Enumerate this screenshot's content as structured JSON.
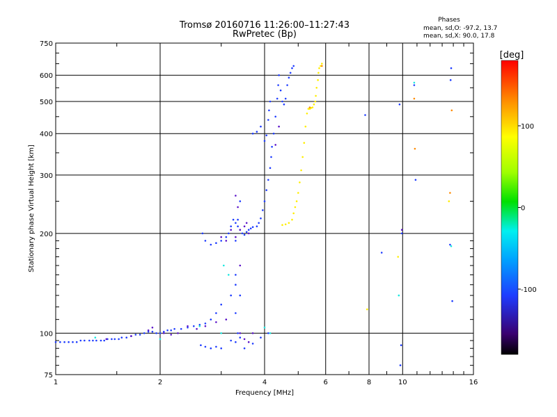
{
  "chart_data": {
    "type": "scatter",
    "title": "Tromsø 20160716 11:26:00–11:27:43",
    "subtitle": "RwPretec (Bp)",
    "xlabel": "Frequency [MHz]",
    "ylabel": "Stationary phase Virtual Height [km]",
    "x_scale": "log",
    "y_scale": "log",
    "xlim": [
      1,
      16
    ],
    "ylim": [
      75,
      750
    ],
    "x_ticks": [
      1,
      2,
      4,
      6,
      8,
      10,
      16
    ],
    "x_tick_labels": [
      "1",
      "2",
      "4",
      "6",
      "8",
      "10",
      "16"
    ],
    "y_ticks": [
      75,
      100,
      200,
      300,
      400,
      500,
      600,
      750
    ],
    "y_tick_labels": [
      "75",
      "100",
      "200",
      "300",
      "400",
      "500",
      "600",
      "750"
    ],
    "phase_box": {
      "title": "Phases",
      "line1": "mean, sd,O: -97.2, 13.7",
      "line2": "mean, sd,X:  90.0, 17.8"
    },
    "colorbar": {
      "label": "[deg]",
      "range": [
        -180,
        180
      ],
      "ticks": [
        -100,
        0,
        100
      ],
      "tick_labels": [
        "-100",
        "0",
        "100"
      ]
    },
    "series": [
      {
        "phase_deg": -97,
        "color": "#1e3cff",
        "points": [
          [
            1.0,
            94
          ],
          [
            1.03,
            94
          ],
          [
            1.06,
            94
          ],
          [
            1.09,
            94
          ],
          [
            1.12,
            94
          ],
          [
            1.15,
            94
          ],
          [
            1.18,
            95
          ],
          [
            1.21,
            95
          ],
          [
            1.25,
            95
          ],
          [
            1.28,
            95
          ],
          [
            1.31,
            95
          ],
          [
            1.35,
            95
          ],
          [
            1.38,
            95
          ],
          [
            1.41,
            96
          ],
          [
            1.45,
            96
          ],
          [
            1.48,
            96
          ],
          [
            1.52,
            96
          ],
          [
            1.55,
            97
          ],
          [
            1.6,
            97
          ],
          [
            1.65,
            98
          ],
          [
            1.7,
            99
          ],
          [
            1.75,
            99
          ],
          [
            1.8,
            100
          ],
          [
            1.85,
            101
          ],
          [
            1.9,
            101
          ],
          [
            1.95,
            100
          ],
          [
            2.0,
            100
          ],
          [
            2.05,
            101
          ],
          [
            2.1,
            102
          ],
          [
            2.15,
            102
          ],
          [
            2.2,
            103
          ],
          [
            2.3,
            103
          ],
          [
            2.4,
            104
          ],
          [
            2.5,
            105
          ],
          [
            2.6,
            106
          ],
          [
            2.7,
            107
          ],
          [
            2.8,
            110
          ],
          [
            2.9,
            115
          ],
          [
            3.0,
            122
          ],
          [
            2.62,
            92
          ],
          [
            2.7,
            91
          ],
          [
            2.8,
            90
          ],
          [
            2.9,
            91
          ],
          [
            3.0,
            90
          ],
          [
            3.2,
            95
          ],
          [
            3.3,
            94
          ],
          [
            3.5,
            90
          ],
          [
            3.7,
            93
          ],
          [
            3.9,
            97
          ],
          [
            4.1,
            100
          ],
          [
            2.65,
            200
          ],
          [
            2.7,
            190
          ],
          [
            2.8,
            185
          ],
          [
            2.9,
            187
          ],
          [
            3.0,
            190
          ],
          [
            3.1,
            195
          ],
          [
            3.15,
            200
          ],
          [
            3.2,
            210
          ],
          [
            3.25,
            220
          ],
          [
            3.3,
            215
          ],
          [
            3.35,
            210
          ],
          [
            3.4,
            205
          ],
          [
            3.45,
            200
          ],
          [
            3.5,
            198
          ],
          [
            3.55,
            202
          ],
          [
            3.6,
            205
          ],
          [
            3.65,
            207
          ],
          [
            3.7,
            209
          ],
          [
            3.8,
            210
          ],
          [
            3.85,
            215
          ],
          [
            3.9,
            222
          ],
          [
            3.95,
            235
          ],
          [
            4.0,
            250
          ],
          [
            4.05,
            270
          ],
          [
            4.1,
            290
          ],
          [
            4.15,
            315
          ],
          [
            4.18,
            340
          ],
          [
            4.2,
            365
          ],
          [
            4.25,
            400
          ],
          [
            4.3,
            450
          ],
          [
            4.35,
            510
          ],
          [
            4.38,
            560
          ],
          [
            4.4,
            600
          ],
          [
            4.45,
            540
          ],
          [
            4.5,
            500
          ],
          [
            4.55,
            490
          ],
          [
            4.6,
            510
          ],
          [
            4.65,
            560
          ],
          [
            4.7,
            590
          ],
          [
            4.75,
            610
          ],
          [
            4.8,
            630
          ],
          [
            4.85,
            640
          ],
          [
            4.0,
            380
          ],
          [
            4.05,
            395
          ],
          [
            4.1,
            440
          ],
          [
            4.12,
            470
          ],
          [
            4.15,
            500
          ],
          [
            3.7,
            400
          ],
          [
            3.8,
            405
          ],
          [
            3.9,
            420
          ],
          [
            3.4,
            250
          ],
          [
            3.35,
            220
          ],
          [
            3.3,
            190
          ],
          [
            3.3,
            150
          ],
          [
            3.3,
            140
          ],
          [
            3.4,
            130
          ],
          [
            3.2,
            130
          ],
          [
            3.3,
            115
          ],
          [
            3.35,
            100
          ],
          [
            3.4,
            97
          ],
          [
            7.8,
            455
          ],
          [
            8.7,
            175
          ],
          [
            9.8,
            490
          ],
          [
            9.85,
            80
          ],
          [
            9.9,
            92
          ],
          [
            9.95,
            200
          ],
          [
            10.8,
            560
          ],
          [
            10.9,
            290
          ],
          [
            13.8,
            630
          ],
          [
            13.75,
            580
          ],
          [
            13.7,
            185
          ],
          [
            13.9,
            125
          ]
        ]
      },
      {
        "phase_deg": -135,
        "color": "#5a12c8",
        "points": [
          [
            1.4,
            96
          ],
          [
            1.65,
            98
          ],
          [
            1.85,
            102
          ],
          [
            1.9,
            104
          ],
          [
            2.05,
            100
          ],
          [
            2.15,
            99
          ],
          [
            2.25,
            100
          ],
          [
            2.4,
            105
          ],
          [
            2.55,
            103
          ],
          [
            2.7,
            105
          ],
          [
            2.9,
            108
          ],
          [
            3.1,
            110
          ],
          [
            3.0,
            195
          ],
          [
            3.1,
            190
          ],
          [
            3.2,
            205
          ],
          [
            3.3,
            195
          ],
          [
            3.4,
            205
          ],
          [
            3.5,
            210
          ],
          [
            3.55,
            215
          ],
          [
            3.6,
            200
          ],
          [
            3.35,
            240
          ],
          [
            3.3,
            260
          ],
          [
            3.4,
            100
          ],
          [
            3.5,
            96
          ],
          [
            3.6,
            94
          ],
          [
            3.7,
            100
          ],
          [
            3.4,
            160
          ],
          [
            4.3,
            370
          ],
          [
            4.4,
            420
          ],
          [
            9.95,
            205
          ]
        ]
      },
      {
        "phase_deg": 100,
        "color": "#ffee00",
        "points": [
          [
            4.5,
            212
          ],
          [
            4.6,
            213
          ],
          [
            4.7,
            215
          ],
          [
            4.8,
            220
          ],
          [
            4.85,
            230
          ],
          [
            4.9,
            240
          ],
          [
            4.95,
            250
          ],
          [
            5.0,
            265
          ],
          [
            5.05,
            285
          ],
          [
            5.1,
            310
          ],
          [
            5.15,
            340
          ],
          [
            5.2,
            375
          ],
          [
            5.25,
            420
          ],
          [
            5.3,
            460
          ],
          [
            5.35,
            475
          ],
          [
            5.4,
            475
          ],
          [
            5.45,
            478
          ],
          [
            5.5,
            480
          ],
          [
            5.55,
            490
          ],
          [
            5.6,
            500
          ],
          [
            5.62,
            520
          ],
          [
            5.65,
            550
          ],
          [
            5.7,
            580
          ],
          [
            5.72,
            610
          ],
          [
            5.75,
            630
          ],
          [
            5.8,
            640
          ],
          [
            5.85,
            650
          ],
          [
            7.9,
            118
          ],
          [
            9.7,
            170
          ],
          [
            13.6,
            250
          ]
        ]
      },
      {
        "phase_deg": 150,
        "color": "#ff8a00",
        "points": [
          [
            10.8,
            510
          ],
          [
            10.85,
            360
          ],
          [
            13.85,
            470
          ],
          [
            13.7,
            265
          ],
          [
            5.85,
            640
          ],
          [
            5.4,
            480
          ]
        ]
      },
      {
        "phase_deg": 0,
        "color": "#18e8e0",
        "points": [
          [
            1.3,
            97
          ],
          [
            2.0,
            96
          ],
          [
            2.6,
            105
          ],
          [
            3.0,
            100
          ],
          [
            3.05,
            160
          ],
          [
            3.15,
            150
          ],
          [
            4.0,
            104
          ],
          [
            4.15,
            100
          ],
          [
            9.75,
            130
          ],
          [
            10.8,
            570
          ],
          [
            13.8,
            183
          ]
        ]
      }
    ]
  }
}
